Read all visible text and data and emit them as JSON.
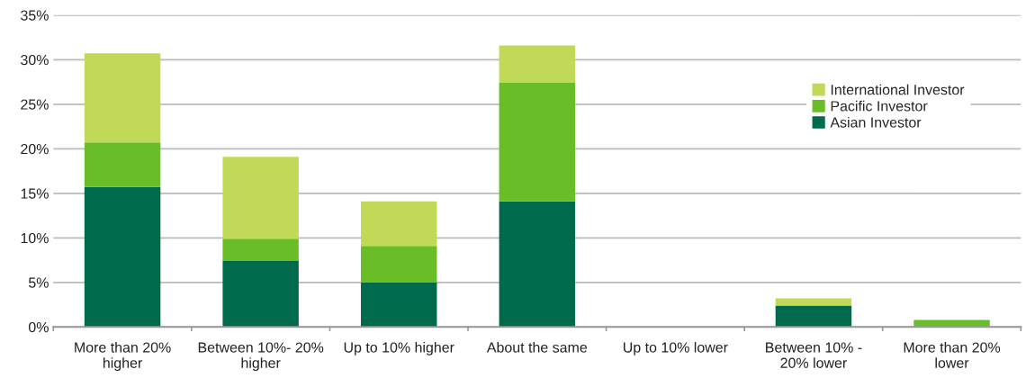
{
  "chart_data": {
    "type": "bar",
    "stacked": true,
    "categories": [
      "More than 20%\nhigher",
      "Between 10%- 20%\nhigher",
      "Up to 10% higher",
      "About the same",
      "Up to 10% lower",
      "Between 10% -\n20% lower",
      "More than 20%\nlower"
    ],
    "series": [
      {
        "name": "Asian Investor",
        "color": "#006a4d",
        "values": [
          15.7,
          7.4,
          5.0,
          14.1,
          0,
          2.4,
          0
        ]
      },
      {
        "name": "Pacific Investor",
        "color": "#69be28",
        "values": [
          5.0,
          2.5,
          4.1,
          13.3,
          0,
          0,
          0.8
        ]
      },
      {
        "name": "International Investor",
        "color": "#c0d956",
        "values": [
          10.0,
          9.2,
          5.0,
          4.2,
          0,
          0.8,
          0
        ]
      }
    ],
    "ylim": [
      0,
      35
    ],
    "yticks": [
      {
        "value": 0,
        "label": "0%"
      },
      {
        "value": 5,
        "label": "5%"
      },
      {
        "value": 10,
        "label": "10%"
      },
      {
        "value": 15,
        "label": "15%"
      },
      {
        "value": 20,
        "label": "20%"
      },
      {
        "value": 25,
        "label": "25%"
      },
      {
        "value": 30,
        "label": "30%"
      },
      {
        "value": 35,
        "label": "35%"
      }
    ],
    "grid": "y",
    "legend": "top right"
  }
}
